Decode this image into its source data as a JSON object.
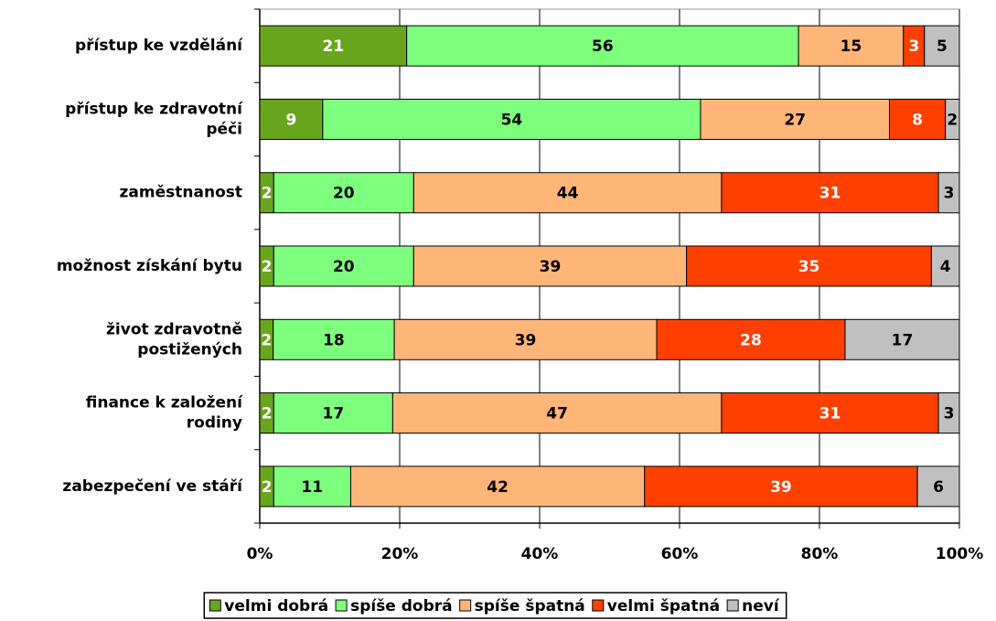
{
  "chart_data": {
    "type": "bar",
    "orientation": "horizontal",
    "stacked": "percent",
    "categories": [
      "přístup ke vzdělání",
      "přístup ke zdravotní péči",
      "zaměstnanost",
      "možnost získání bytu",
      "život zdravotně postižených",
      "finance k založení rodiny",
      "zabezpečení ve stáří"
    ],
    "series": [
      {
        "name": "velmi dobrá",
        "color": "#6aa51e",
        "values": [
          21,
          9,
          2,
          2,
          2,
          2,
          2
        ]
      },
      {
        "name": "spíše dobrá",
        "color": "#7dff7d",
        "values": [
          56,
          54,
          20,
          20,
          18,
          17,
          11
        ]
      },
      {
        "name": "spíše špatná",
        "color": "#ffb577",
        "values": [
          15,
          27,
          44,
          39,
          39,
          47,
          42
        ]
      },
      {
        "name": "velmi špatná",
        "color": "#ff4000",
        "values": [
          3,
          8,
          31,
          35,
          28,
          31,
          39
        ]
      },
      {
        "name": "neví",
        "color": "#c0c0c0",
        "values": [
          5,
          2,
          3,
          4,
          17,
          3,
          6
        ]
      }
    ],
    "xlim": [
      0,
      100
    ],
    "xticks": [
      {
        "value": 0,
        "label": "0%"
      },
      {
        "value": 20,
        "label": "20%"
      },
      {
        "value": 40,
        "label": "40%"
      },
      {
        "value": 60,
        "label": "60%"
      },
      {
        "value": 80,
        "label": "80%"
      },
      {
        "value": 100,
        "label": "100%"
      }
    ],
    "grid": true,
    "legend": "bottom"
  }
}
